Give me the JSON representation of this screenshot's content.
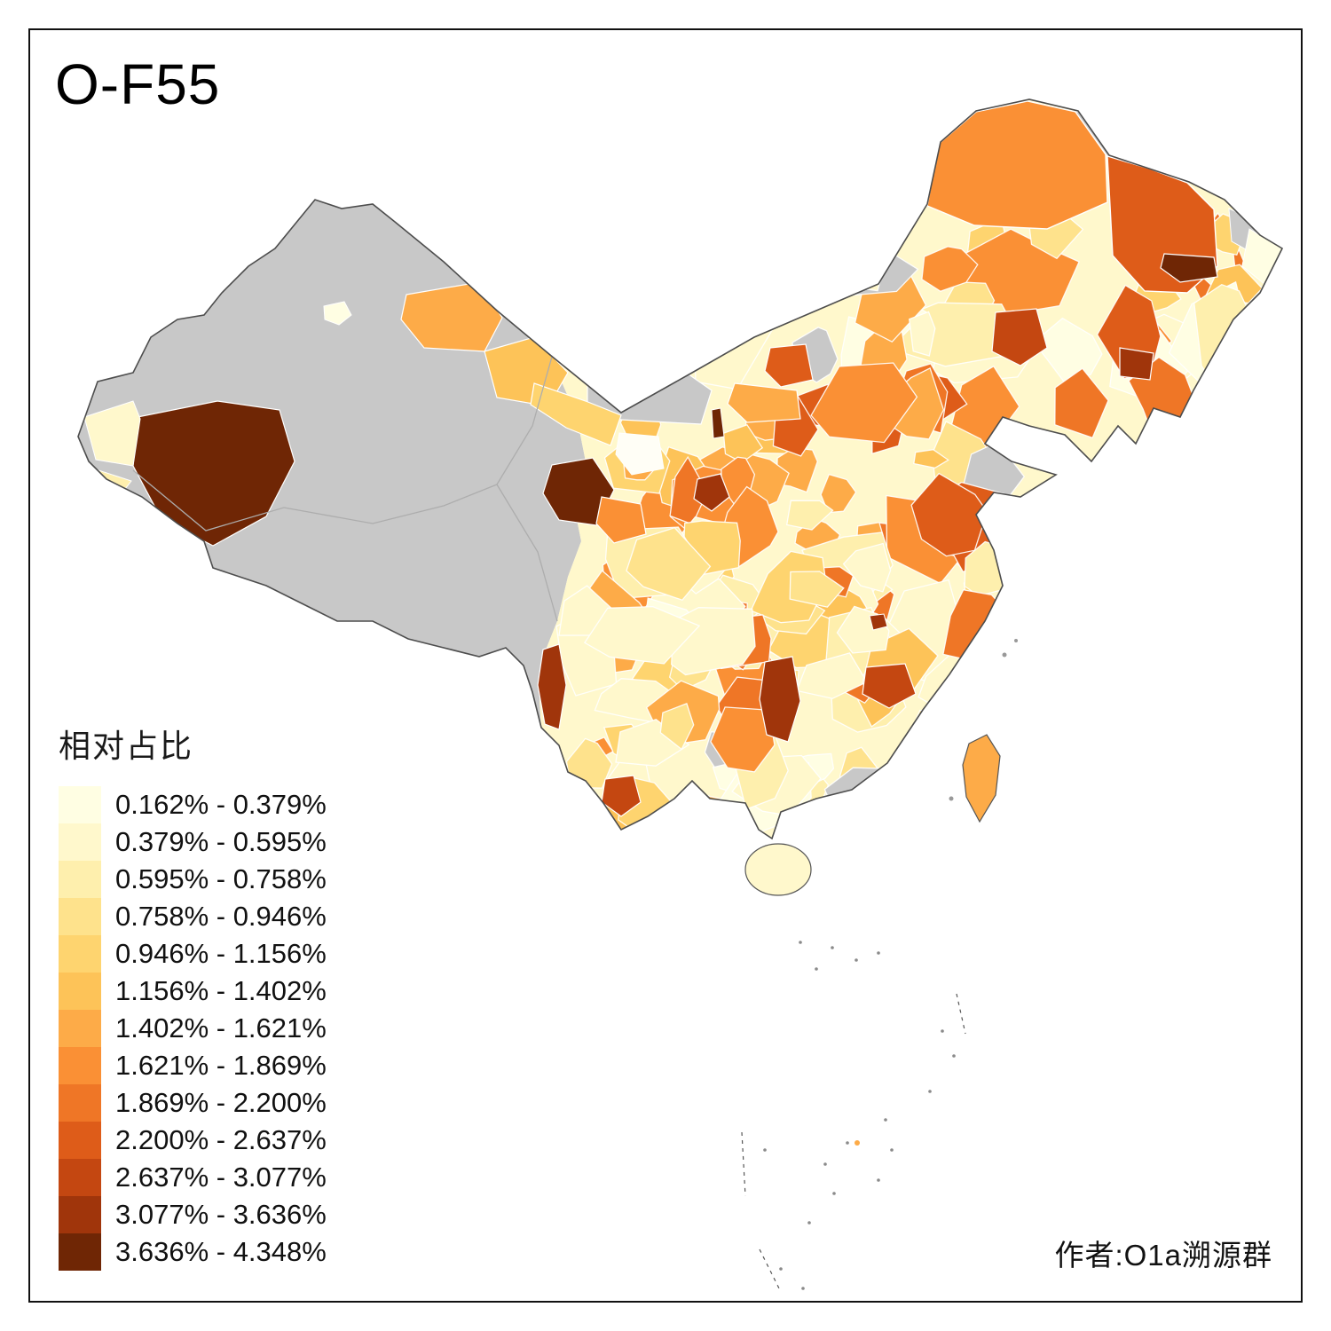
{
  "title": "O-F55",
  "credit": "作者:O1a溯源群",
  "legend": {
    "title": "相对占比",
    "items": [
      {
        "label": "0.162% - 0.379%",
        "color": "#FFFEE3"
      },
      {
        "label": "0.379% - 0.595%",
        "color": "#FFF8CC"
      },
      {
        "label": "0.595% - 0.758%",
        "color": "#FEEFAD"
      },
      {
        "label": "0.758% - 0.946%",
        "color": "#FEE28C"
      },
      {
        "label": "0.946% - 1.156%",
        "color": "#FED46F"
      },
      {
        "label": "1.156% - 1.402%",
        "color": "#FDC358"
      },
      {
        "label": "1.402% - 1.621%",
        "color": "#FDAB48"
      },
      {
        "label": "1.621% - 1.869%",
        "color": "#FA9035"
      },
      {
        "label": "1.869% - 2.200%",
        "color": "#EF7626"
      },
      {
        "label": "2.200% - 2.637%",
        "color": "#DE5C19"
      },
      {
        "label": "2.637% - 3.077%",
        "color": "#C44711"
      },
      {
        "label": "3.077% - 3.636%",
        "color": "#A0350B"
      },
      {
        "label": "3.636% - 4.348%",
        "color": "#6F2605"
      }
    ]
  },
  "map": {
    "no_data_color": "#C8C8C8",
    "outline_color": "#4D4D4D",
    "boundary_color": "#FFFFFF",
    "white_patch_color": "#FFFEF6"
  }
}
